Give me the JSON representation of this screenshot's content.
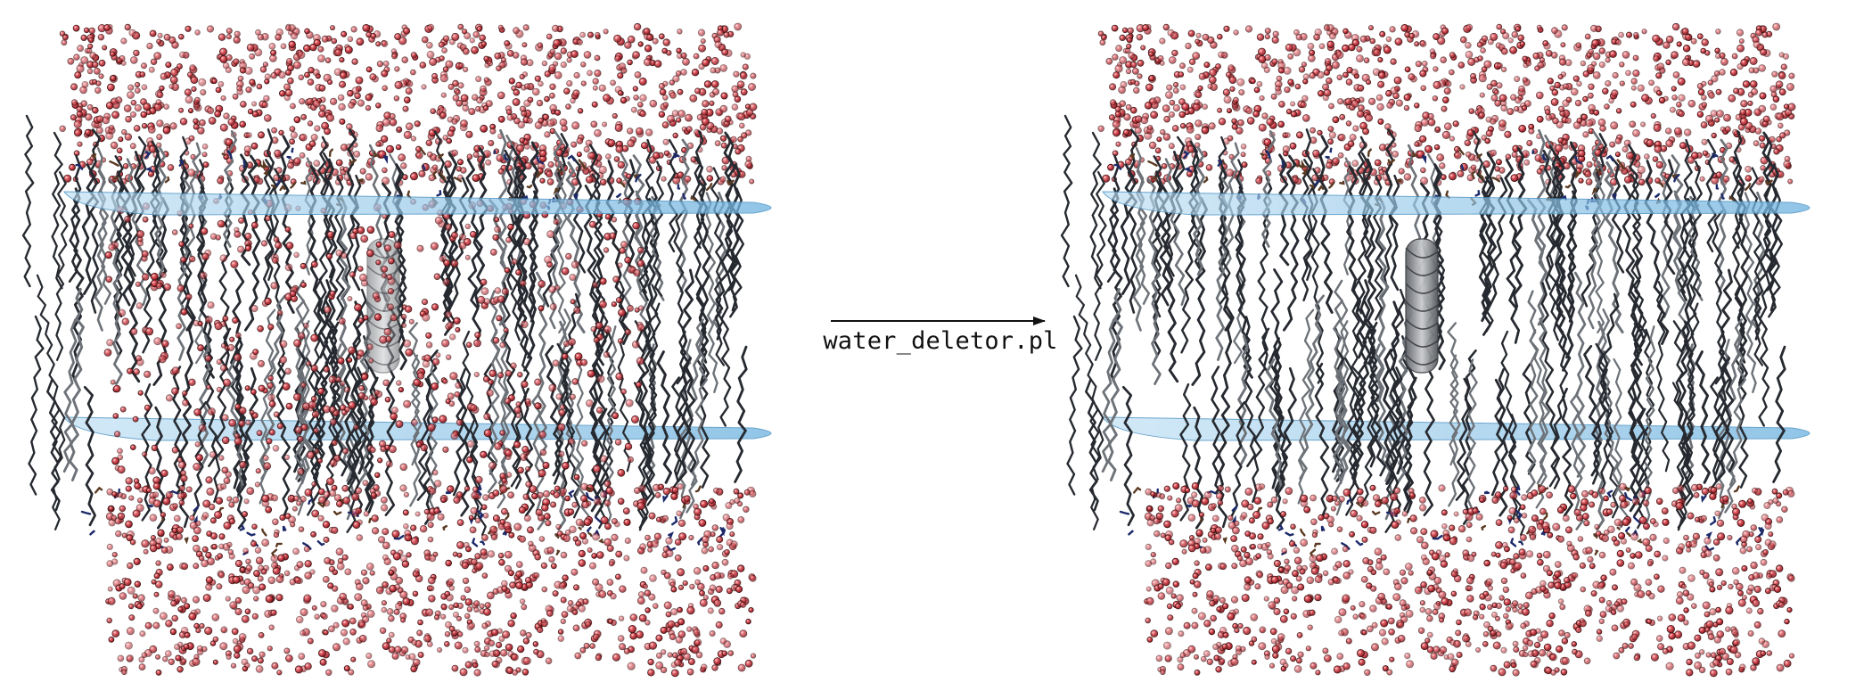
{
  "diagram": {
    "step_label": "water_deletor.pl",
    "panels": [
      {
        "id": "before",
        "has_internal_water": true
      },
      {
        "id": "after",
        "has_internal_water": false
      }
    ],
    "colors": {
      "water": "#c8323c",
      "water_outline": "#3a1010",
      "lipid": "#262a30",
      "lipid_light": "#6d7278",
      "headgroup": "#1c2a6a",
      "membrane_plane": "#8cc3e6",
      "helix": "#8c8f93",
      "arrow": "#111111"
    }
  }
}
